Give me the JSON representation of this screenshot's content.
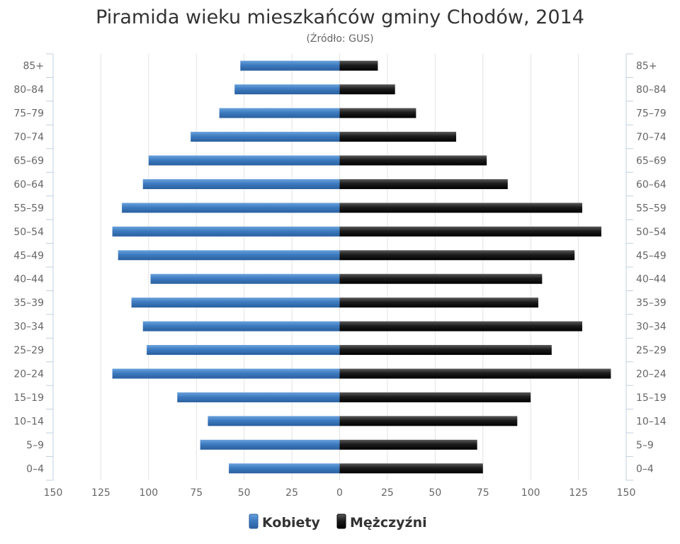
{
  "chart_data": {
    "type": "bar",
    "orientation": "horizontal",
    "title": "Piramida wieku mieszkańców gminy Chodów, 2014",
    "subtitle": "(Źródło: GUS)",
    "categories": [
      "85+",
      "80-84",
      "75-79",
      "70-74",
      "65-69",
      "60-64",
      "55-59",
      "50-54",
      "45-49",
      "40-44",
      "35-39",
      "30-34",
      "25-29",
      "20-24",
      "15-19",
      "10-14",
      "5-9",
      "0-4"
    ],
    "xlim": [
      -150,
      150
    ],
    "x_ticks": [
      -150,
      -125,
      -100,
      -75,
      -50,
      -25,
      0,
      25,
      50,
      75,
      100,
      125,
      150
    ],
    "x_tick_labels": [
      "150",
      "125",
      "100",
      "75",
      "50",
      "25",
      "0",
      "25",
      "50",
      "75",
      "100",
      "125",
      "150"
    ],
    "grid": true,
    "legend_position": "bottom-center",
    "series": [
      {
        "name": "Kobiety",
        "color": "#3a77bb",
        "side": "left",
        "values": [
          52,
          55,
          63,
          78,
          100,
          103,
          114,
          119,
          116,
          99,
          109,
          103,
          101,
          119,
          85,
          69,
          73,
          58
        ]
      },
      {
        "name": "Mężczyźni",
        "color": "#1a1a1a",
        "side": "right",
        "values": [
          20,
          29,
          40,
          61,
          77,
          88,
          127,
          137,
          123,
          106,
          104,
          127,
          111,
          142,
          100,
          93,
          72,
          75
        ]
      }
    ]
  }
}
